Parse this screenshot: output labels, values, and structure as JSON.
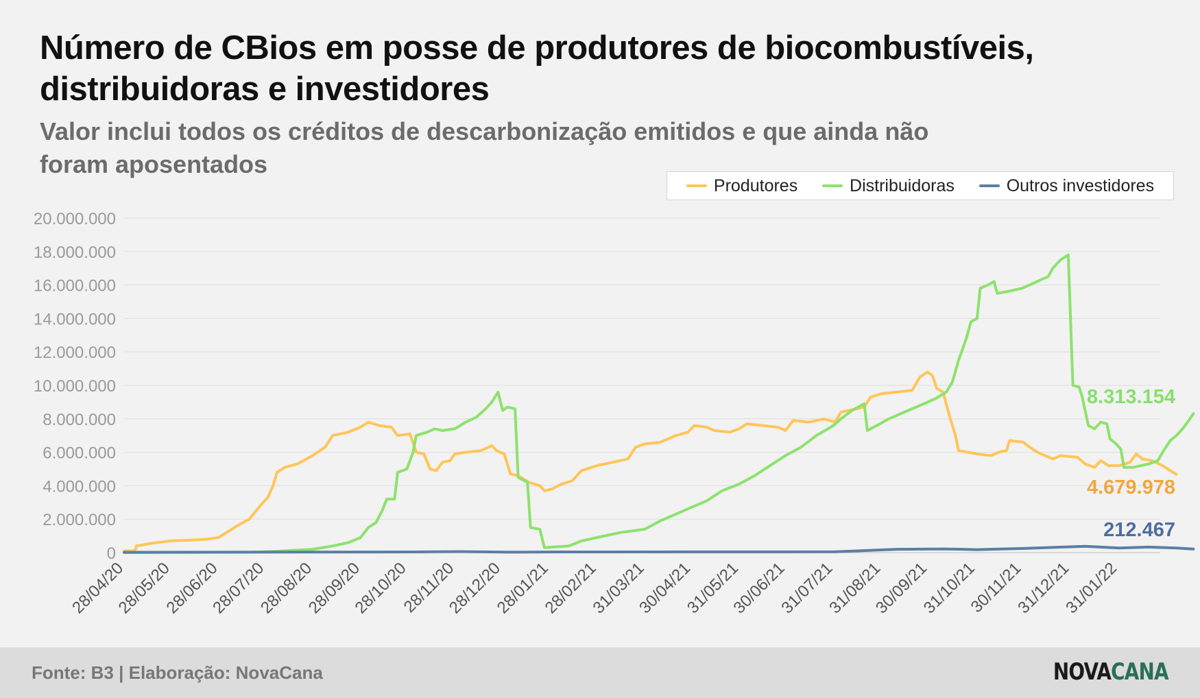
{
  "header": {
    "title": "Número de CBios em posse de produtores de biocombustíveis, distribuidoras e investidores",
    "subtitle": "Valor inclui todos os créditos de descarbonização emitidos e que ainda não foram aposentados"
  },
  "footer": {
    "source": "Fonte: B3 | Elaboração: NovaCana",
    "logo_part1": "NOVA",
    "logo_part2": "CANA"
  },
  "chart_data": {
    "type": "line",
    "title": "Número de CBios em posse de produtores de biocombustíveis, distribuidoras e investidores",
    "subtitle": "Valor inclui todos os créditos de descarbonização emitidos e que ainda não foram aposentados",
    "xlabel": "",
    "ylabel": "",
    "ylim": [
      0,
      20000000
    ],
    "y_ticks": [
      0,
      2000000,
      4000000,
      6000000,
      8000000,
      10000000,
      12000000,
      14000000,
      16000000,
      18000000,
      20000000
    ],
    "y_tick_labels": [
      "0",
      "2.000.000",
      "4.000.000",
      "6.000.000",
      "8.000.000",
      "10.000.000",
      "12.000.000",
      "14.000.000",
      "16.000.000",
      "18.000.000",
      "20.000.000"
    ],
    "x_range": [
      "2020-04-28",
      "2022-02-21"
    ],
    "x_ticks": [
      "2020-04-28",
      "2020-05-28",
      "2020-06-28",
      "2020-07-28",
      "2020-08-28",
      "2020-09-28",
      "2020-10-28",
      "2020-11-28",
      "2020-12-28",
      "2021-01-28",
      "2021-02-28",
      "2021-03-31",
      "2021-04-30",
      "2021-05-31",
      "2021-06-30",
      "2021-07-31",
      "2021-08-31",
      "2021-09-30",
      "2021-10-31",
      "2021-11-30",
      "2021-12-31",
      "2022-01-31"
    ],
    "x_tick_labels": [
      "28/04/20",
      "28/05/20",
      "28/06/20",
      "28/07/20",
      "28/08/20",
      "28/09/20",
      "28/10/20",
      "28/11/20",
      "28/12/20",
      "28/01/21",
      "28/02/21",
      "31/03/21",
      "30/04/21",
      "31/05/21",
      "30/06/21",
      "31/07/21",
      "31/08/21",
      "30/09/21",
      "31/10/21",
      "30/11/21",
      "31/12/21",
      "31/01/22"
    ],
    "grid": "horizontal",
    "legend_position": "top-right",
    "series": [
      {
        "name": "Produtores",
        "color": "#ffc658",
        "label_color": "#f2a73b",
        "end_label": "4.679.978",
        "points": [
          [
            "2020-04-28",
            100000
          ],
          [
            "2020-05-05",
            120000
          ],
          [
            "2020-05-06",
            400000
          ],
          [
            "2020-05-15",
            550000
          ],
          [
            "2020-05-28",
            700000
          ],
          [
            "2020-06-10",
            750000
          ],
          [
            "2020-06-20",
            800000
          ],
          [
            "2020-06-28",
            900000
          ],
          [
            "2020-07-05",
            1300000
          ],
          [
            "2020-07-10",
            1600000
          ],
          [
            "2020-07-18",
            2000000
          ],
          [
            "2020-07-25",
            2800000
          ],
          [
            "2020-07-30",
            3300000
          ],
          [
            "2020-08-02",
            3900000
          ],
          [
            "2020-08-05",
            4800000
          ],
          [
            "2020-08-10",
            5100000
          ],
          [
            "2020-08-18",
            5300000
          ],
          [
            "2020-08-28",
            5800000
          ],
          [
            "2020-09-05",
            6300000
          ],
          [
            "2020-09-10",
            7000000
          ],
          [
            "2020-09-20",
            7200000
          ],
          [
            "2020-09-28",
            7500000
          ],
          [
            "2020-10-03",
            7800000
          ],
          [
            "2020-10-10",
            7600000
          ],
          [
            "2020-10-18",
            7500000
          ],
          [
            "2020-10-22",
            7000000
          ],
          [
            "2020-10-30",
            7100000
          ],
          [
            "2020-11-03",
            6000000
          ],
          [
            "2020-11-08",
            5900000
          ],
          [
            "2020-11-12",
            5000000
          ],
          [
            "2020-11-16",
            4900000
          ],
          [
            "2020-11-20",
            5400000
          ],
          [
            "2020-11-25",
            5500000
          ],
          [
            "2020-11-28",
            5900000
          ],
          [
            "2020-12-05",
            6000000
          ],
          [
            "2020-12-15",
            6100000
          ],
          [
            "2020-12-22",
            6400000
          ],
          [
            "2020-12-25",
            6100000
          ],
          [
            "2020-12-30",
            5900000
          ],
          [
            "2021-01-03",
            4700000
          ],
          [
            "2021-01-08",
            4600000
          ],
          [
            "2021-01-15",
            4200000
          ],
          [
            "2021-01-22",
            4000000
          ],
          [
            "2021-01-25",
            3700000
          ],
          [
            "2021-01-30",
            3800000
          ],
          [
            "2021-02-05",
            4100000
          ],
          [
            "2021-02-12",
            4300000
          ],
          [
            "2021-02-18",
            4900000
          ],
          [
            "2021-02-28",
            5200000
          ],
          [
            "2021-03-10",
            5400000
          ],
          [
            "2021-03-20",
            5600000
          ],
          [
            "2021-03-25",
            6300000
          ],
          [
            "2021-03-31",
            6500000
          ],
          [
            "2021-04-10",
            6600000
          ],
          [
            "2021-04-20",
            7000000
          ],
          [
            "2021-04-28",
            7200000
          ],
          [
            "2021-05-02",
            7600000
          ],
          [
            "2021-05-10",
            7500000
          ],
          [
            "2021-05-15",
            7300000
          ],
          [
            "2021-05-25",
            7200000
          ],
          [
            "2021-05-31",
            7400000
          ],
          [
            "2021-06-05",
            7700000
          ],
          [
            "2021-06-15",
            7600000
          ],
          [
            "2021-06-25",
            7500000
          ],
          [
            "2021-06-30",
            7300000
          ],
          [
            "2021-07-05",
            7900000
          ],
          [
            "2021-07-15",
            7800000
          ],
          [
            "2021-07-25",
            8000000
          ],
          [
            "2021-08-01",
            7800000
          ],
          [
            "2021-08-05",
            8400000
          ],
          [
            "2021-08-15",
            8600000
          ],
          [
            "2021-08-20",
            8700000
          ],
          [
            "2021-08-24",
            9300000
          ],
          [
            "2021-08-31",
            9500000
          ],
          [
            "2021-09-10",
            9600000
          ],
          [
            "2021-09-20",
            9700000
          ],
          [
            "2021-09-25",
            10500000
          ],
          [
            "2021-09-30",
            10800000
          ],
          [
            "2021-10-03",
            10600000
          ],
          [
            "2021-10-06",
            9800000
          ],
          [
            "2021-10-10",
            9600000
          ],
          [
            "2021-10-14",
            8200000
          ],
          [
            "2021-10-18",
            7000000
          ],
          [
            "2021-10-20",
            6100000
          ],
          [
            "2021-11-01",
            5900000
          ],
          [
            "2021-11-10",
            5800000
          ],
          [
            "2021-11-15",
            6000000
          ],
          [
            "2021-11-20",
            6100000
          ],
          [
            "2021-11-22",
            6700000
          ],
          [
            "2021-12-01",
            6600000
          ],
          [
            "2021-12-05",
            6300000
          ],
          [
            "2021-12-10",
            6000000
          ],
          [
            "2021-12-15",
            5800000
          ],
          [
            "2021-12-20",
            5600000
          ],
          [
            "2021-12-25",
            5800000
          ],
          [
            "2022-01-05",
            5700000
          ],
          [
            "2022-01-10",
            5300000
          ],
          [
            "2022-01-16",
            5100000
          ],
          [
            "2022-01-20",
            5500000
          ],
          [
            "2022-01-25",
            5200000
          ],
          [
            "2022-02-01",
            5200000
          ],
          [
            "2022-02-08",
            5400000
          ],
          [
            "2022-02-12",
            5900000
          ],
          [
            "2022-02-16",
            5600000
          ],
          [
            "2022-02-22",
            5500000
          ],
          [
            "2022-03-01",
            5200000
          ],
          [
            "2022-03-06",
            4900000
          ],
          [
            "2022-03-10",
            4679978
          ]
        ]
      },
      {
        "name": "Distribuidoras",
        "color": "#8de26d",
        "label_color": "#86e06b",
        "end_label": "8.313.154",
        "points": [
          [
            "2020-04-28",
            0
          ],
          [
            "2020-07-20",
            30000
          ],
          [
            "2020-08-05",
            80000
          ],
          [
            "2020-08-28",
            200000
          ],
          [
            "2020-09-10",
            400000
          ],
          [
            "2020-09-20",
            600000
          ],
          [
            "2020-09-28",
            900000
          ],
          [
            "2020-10-03",
            1500000
          ],
          [
            "2020-10-08",
            1800000
          ],
          [
            "2020-10-12",
            2500000
          ],
          [
            "2020-10-15",
            3200000
          ],
          [
            "2020-10-20",
            3200000
          ],
          [
            "2020-10-22",
            4800000
          ],
          [
            "2020-10-28",
            5000000
          ],
          [
            "2020-11-01",
            6000000
          ],
          [
            "2020-11-03",
            7000000
          ],
          [
            "2020-11-10",
            7200000
          ],
          [
            "2020-11-15",
            7400000
          ],
          [
            "2020-11-20",
            7300000
          ],
          [
            "2020-11-28",
            7400000
          ],
          [
            "2020-12-05",
            7800000
          ],
          [
            "2020-12-12",
            8100000
          ],
          [
            "2020-12-18",
            8600000
          ],
          [
            "2020-12-22",
            9000000
          ],
          [
            "2020-12-26",
            9600000
          ],
          [
            "2020-12-29",
            8500000
          ],
          [
            "2021-01-01",
            8700000
          ],
          [
            "2021-01-06",
            8600000
          ],
          [
            "2021-01-08",
            4500000
          ],
          [
            "2021-01-14",
            4200000
          ],
          [
            "2021-01-16",
            1500000
          ],
          [
            "2021-01-22",
            1400000
          ],
          [
            "2021-01-25",
            300000
          ],
          [
            "2021-02-10",
            400000
          ],
          [
            "2021-02-18",
            700000
          ],
          [
            "2021-02-28",
            900000
          ],
          [
            "2021-03-15",
            1200000
          ],
          [
            "2021-03-31",
            1400000
          ],
          [
            "2021-04-10",
            1900000
          ],
          [
            "2021-04-20",
            2300000
          ],
          [
            "2021-04-30",
            2700000
          ],
          [
            "2021-05-10",
            3100000
          ],
          [
            "2021-05-20",
            3700000
          ],
          [
            "2021-05-31",
            4100000
          ],
          [
            "2021-06-10",
            4600000
          ],
          [
            "2021-06-20",
            5200000
          ],
          [
            "2021-06-30",
            5800000
          ],
          [
            "2021-07-10",
            6300000
          ],
          [
            "2021-07-20",
            7000000
          ],
          [
            "2021-07-31",
            7600000
          ],
          [
            "2021-08-05",
            8000000
          ],
          [
            "2021-08-12",
            8500000
          ],
          [
            "2021-08-20",
            8900000
          ],
          [
            "2021-08-22",
            7300000
          ],
          [
            "2021-08-28",
            7600000
          ],
          [
            "2021-09-05",
            8000000
          ],
          [
            "2021-09-15",
            8400000
          ],
          [
            "2021-09-25",
            8800000
          ],
          [
            "2021-10-05",
            9200000
          ],
          [
            "2021-10-12",
            9600000
          ],
          [
            "2021-10-16",
            10200000
          ],
          [
            "2021-10-20",
            11500000
          ],
          [
            "2021-10-25",
            12800000
          ],
          [
            "2021-10-28",
            13800000
          ],
          [
            "2021-11-01",
            14000000
          ],
          [
            "2021-11-03",
            15800000
          ],
          [
            "2021-11-08",
            16000000
          ],
          [
            "2021-11-12",
            16200000
          ],
          [
            "2021-11-14",
            15500000
          ],
          [
            "2021-11-20",
            15600000
          ],
          [
            "2021-11-30",
            15800000
          ],
          [
            "2021-12-05",
            16000000
          ],
          [
            "2021-12-12",
            16300000
          ],
          [
            "2021-12-17",
            16500000
          ],
          [
            "2021-12-20",
            17000000
          ],
          [
            "2021-12-25",
            17500000
          ],
          [
            "2021-12-30",
            17800000
          ],
          [
            "2022-01-02",
            10000000
          ],
          [
            "2022-01-06",
            9900000
          ],
          [
            "2022-01-08",
            9300000
          ],
          [
            "2022-01-12",
            7600000
          ],
          [
            "2022-01-16",
            7400000
          ],
          [
            "2022-01-20",
            7800000
          ],
          [
            "2022-01-24",
            7700000
          ],
          [
            "2022-01-26",
            6800000
          ],
          [
            "2022-01-30",
            6500000
          ],
          [
            "2022-02-02",
            6200000
          ],
          [
            "2022-02-04",
            5100000
          ],
          [
            "2022-02-10",
            5100000
          ],
          [
            "2022-02-20",
            5300000
          ],
          [
            "2022-02-26",
            5500000
          ],
          [
            "2022-03-01",
            6000000
          ],
          [
            "2022-03-06",
            6700000
          ],
          [
            "2022-03-10",
            7000000
          ],
          [
            "2022-03-14",
            7400000
          ],
          [
            "2022-03-18",
            7900000
          ],
          [
            "2022-03-21",
            8313154
          ]
        ]
      },
      {
        "name": "Outros investidores",
        "color": "#5b7fa5",
        "label_color": "#4c6ea0",
        "end_label": "212.467",
        "points": [
          [
            "2020-04-28",
            20000
          ],
          [
            "2020-11-01",
            40000
          ],
          [
            "2020-12-01",
            60000
          ],
          [
            "2021-01-01",
            30000
          ],
          [
            "2021-02-01",
            40000
          ],
          [
            "2021-08-01",
            50000
          ],
          [
            "2021-09-10",
            200000
          ],
          [
            "2021-10-10",
            220000
          ],
          [
            "2021-11-01",
            180000
          ],
          [
            "2021-12-01",
            250000
          ],
          [
            "2022-01-10",
            380000
          ],
          [
            "2022-02-01",
            280000
          ],
          [
            "2022-02-20",
            330000
          ],
          [
            "2022-03-10",
            280000
          ],
          [
            "2022-03-21",
            212467
          ]
        ]
      }
    ]
  }
}
